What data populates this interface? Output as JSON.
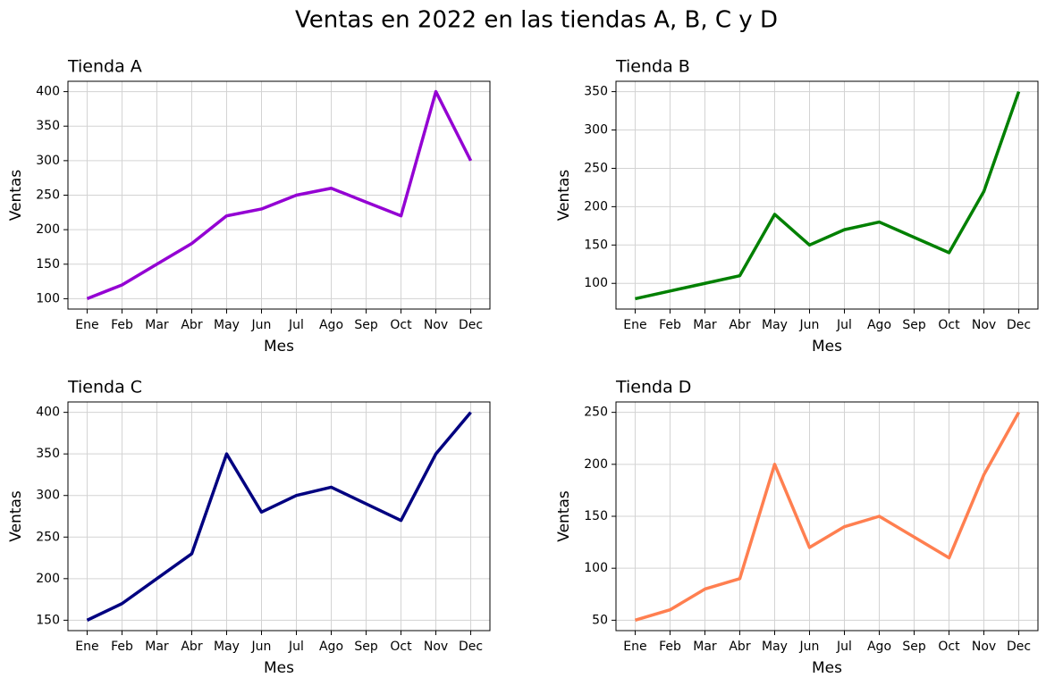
{
  "title": "Ventas en 2022 en las tiendas A, B, C y D",
  "chart_data": [
    {
      "type": "line",
      "title": "Tienda A",
      "x_label": "Mes",
      "y_label": "Ventas",
      "categories": [
        "Ene",
        "Feb",
        "Mar",
        "Abr",
        "May",
        "Jun",
        "Jul",
        "Ago",
        "Sep",
        "Oct",
        "Nov",
        "Dec"
      ],
      "values": [
        100,
        120,
        150,
        180,
        220,
        230,
        250,
        260,
        240,
        220,
        400,
        300
      ],
      "color": "#9400d3",
      "ylim": [
        85,
        415
      ],
      "yticks": [
        100,
        150,
        200,
        250,
        300,
        350,
        400
      ],
      "grid": true
    },
    {
      "type": "line",
      "title": "Tienda B",
      "x_label": "Mes",
      "y_label": "Ventas",
      "categories": [
        "Ene",
        "Feb",
        "Mar",
        "Abr",
        "May",
        "Jun",
        "Jul",
        "Ago",
        "Sep",
        "Oct",
        "Nov",
        "Dec"
      ],
      "values": [
        80,
        90,
        100,
        110,
        190,
        150,
        170,
        180,
        160,
        140,
        220,
        350
      ],
      "color": "#008000",
      "ylim": [
        66.5,
        363.5
      ],
      "yticks": [
        100,
        150,
        200,
        250,
        300,
        350
      ],
      "grid": true
    },
    {
      "type": "line",
      "title": "Tienda C",
      "x_label": "Mes",
      "y_label": "Ventas",
      "categories": [
        "Ene",
        "Feb",
        "Mar",
        "Abr",
        "May",
        "Jun",
        "Jul",
        "Ago",
        "Sep",
        "Oct",
        "Nov",
        "Dec"
      ],
      "values": [
        150,
        170,
        200,
        230,
        350,
        280,
        300,
        310,
        290,
        270,
        350,
        400
      ],
      "color": "#000080",
      "ylim": [
        137.5,
        412.5
      ],
      "yticks": [
        150,
        200,
        250,
        300,
        350,
        400
      ],
      "grid": true
    },
    {
      "type": "line",
      "title": "Tienda D",
      "x_label": "Mes",
      "y_label": "Ventas",
      "categories": [
        "Ene",
        "Feb",
        "Mar",
        "Abr",
        "May",
        "Jun",
        "Jul",
        "Ago",
        "Sep",
        "Oct",
        "Nov",
        "Dec"
      ],
      "values": [
        50,
        60,
        80,
        90,
        200,
        120,
        140,
        150,
        130,
        110,
        190,
        250
      ],
      "color": "#ff7f50",
      "ylim": [
        40,
        260
      ],
      "yticks": [
        50,
        100,
        150,
        200,
        250
      ],
      "grid": true
    }
  ]
}
